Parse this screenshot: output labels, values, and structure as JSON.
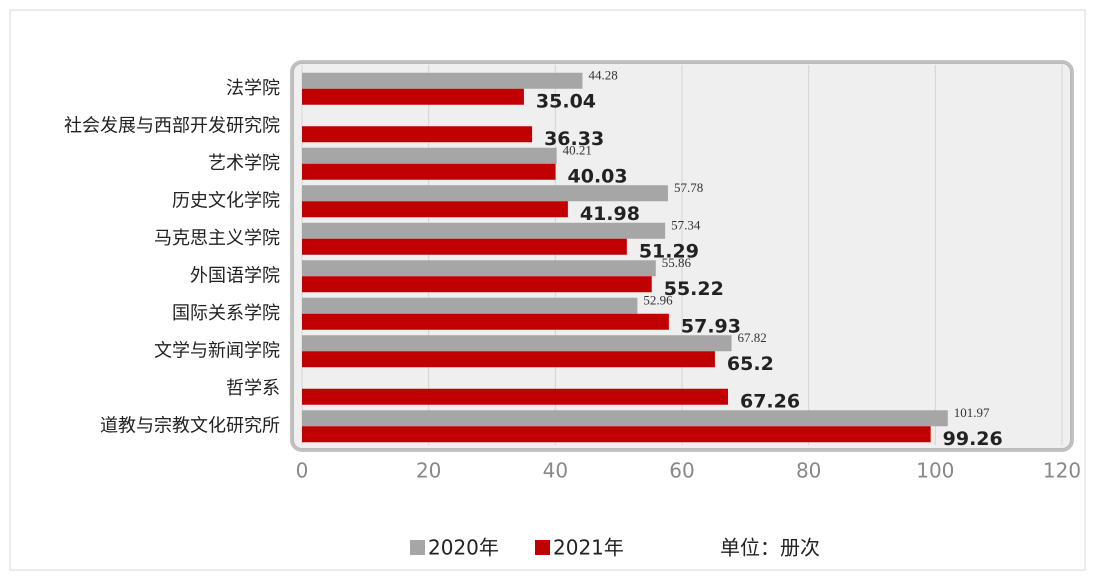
{
  "chart_data": {
    "type": "bar",
    "orientation": "horizontal",
    "categories": [
      "法学院",
      "社会发展与西部开发研究院",
      "艺术学院",
      "历史文化学院",
      "马克思主义学院",
      "外国语学院",
      "国际关系学院",
      "文学与新闻学院",
      "哲学系",
      "道教与宗教文化研究所"
    ],
    "series": [
      {
        "name": "2020年",
        "color": "#a6a6a6",
        "values": [
          44.28,
          null,
          40.21,
          57.78,
          57.34,
          55.86,
          52.96,
          67.82,
          null,
          101.97
        ]
      },
      {
        "name": "2021年",
        "color": "#c00000",
        "values": [
          35.04,
          36.33,
          40.03,
          41.98,
          51.29,
          55.22,
          57.93,
          65.2,
          67.26,
          99.26
        ]
      }
    ],
    "xlim": [
      0,
      120
    ],
    "xticks": [
      0,
      20,
      40,
      60,
      80,
      100,
      120
    ],
    "grid": true,
    "legend": "bottom",
    "unit_note": "单位：册次"
  }
}
